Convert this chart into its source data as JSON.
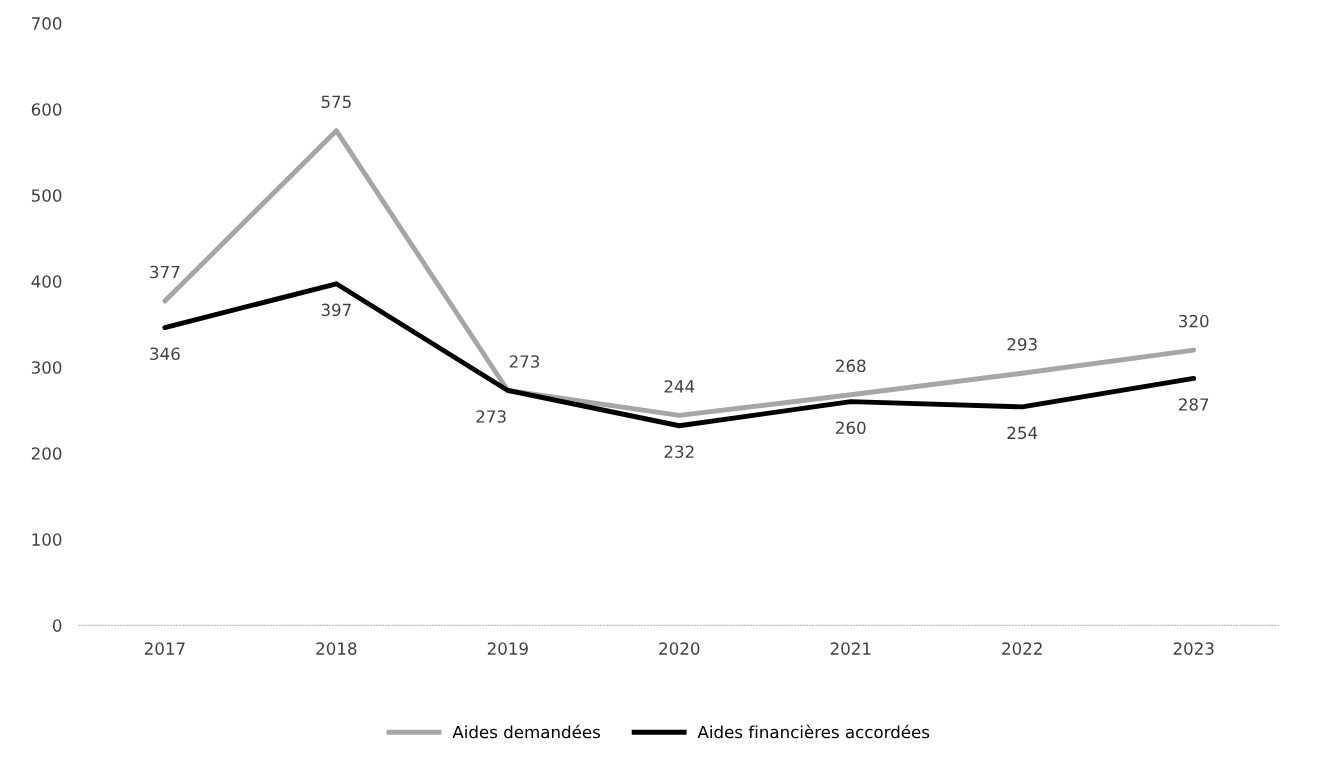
{
  "chart_data": {
    "type": "line",
    "categories": [
      "2017",
      "2018",
      "2019",
      "2020",
      "2021",
      "2022",
      "2023"
    ],
    "series": [
      {
        "name": "Aides demandées",
        "color": "#a6a6a6",
        "values": [
          377,
          575,
          273,
          244,
          268,
          293,
          320
        ]
      },
      {
        "name": "Aides financières accordées",
        "color": "#000000",
        "values": [
          346,
          397,
          273,
          232,
          260,
          254,
          287
        ]
      }
    ],
    "ylim": [
      0,
      700
    ],
    "yticks": [
      0,
      100,
      200,
      300,
      400,
      500,
      600,
      700
    ],
    "grid": false,
    "legend": "bottom",
    "marker": "none",
    "line_style": "solid",
    "data_labels": true
  }
}
